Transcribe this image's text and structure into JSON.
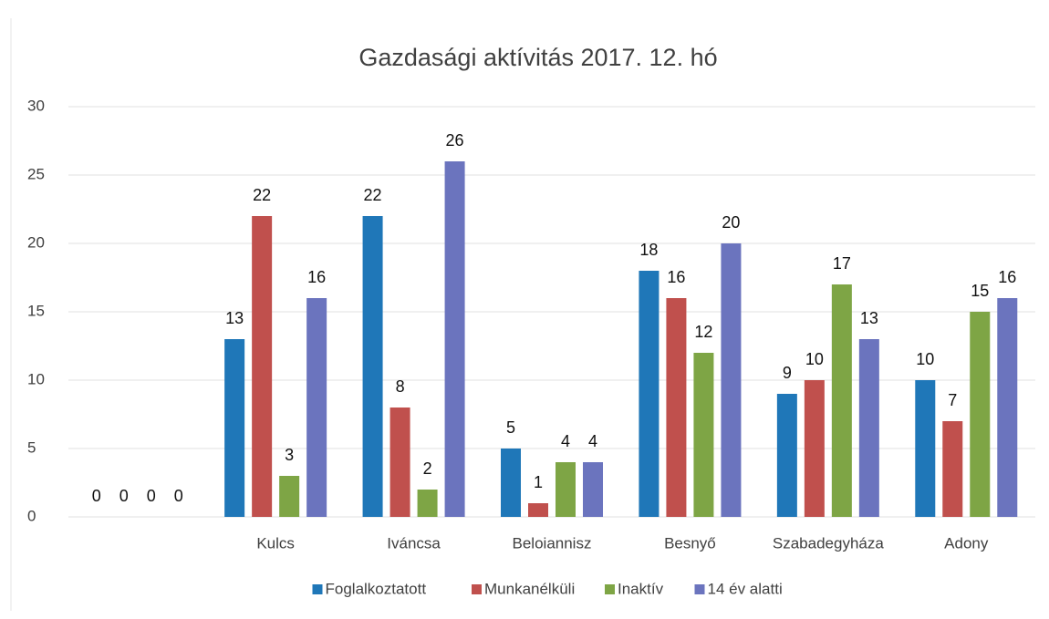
{
  "chart_data": {
    "type": "bar",
    "title": "Gazdasági aktívitás 2017. 12. hó",
    "categories": [
      null,
      "Kulcs",
      "Iváncsa",
      "Beloiannisz",
      "Besnyő",
      "Szabadegyháza",
      "Adony"
    ],
    "series": [
      {
        "name": "Foglalkoztatott",
        "color": "#1f77b8",
        "values": [
          0,
          13,
          22,
          5,
          18,
          9,
          10
        ]
      },
      {
        "name": "Munkanélküli",
        "color": "#c0504d",
        "values": [
          0,
          22,
          8,
          1,
          16,
          10,
          7
        ]
      },
      {
        "name": "Inaktív",
        "color": "#7ea545",
        "values": [
          0,
          3,
          2,
          4,
          12,
          17,
          15
        ]
      },
      {
        "name": "14 év alatti",
        "color": "#6b74be",
        "values": [
          0,
          16,
          26,
          4,
          20,
          13,
          16
        ]
      }
    ],
    "ylim": [
      0,
      30
    ],
    "yticks": [
      0,
      5,
      10,
      15,
      20,
      25,
      30
    ],
    "grid": true,
    "legend": "bottom"
  }
}
